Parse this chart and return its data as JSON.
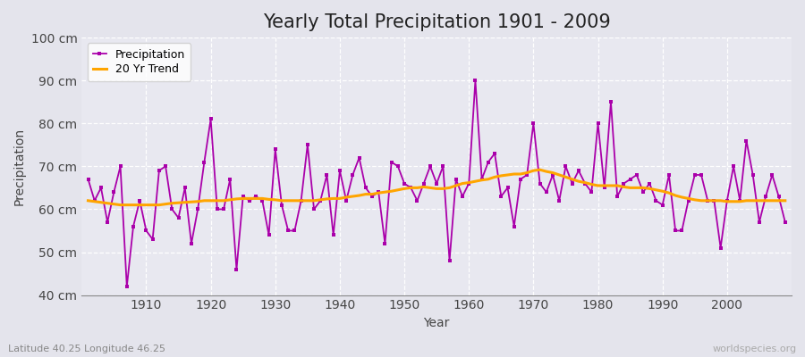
{
  "title": "Yearly Total Precipitation 1901 - 2009",
  "xlabel": "Year",
  "ylabel": "Precipitation",
  "subtitle_left": "Latitude 40.25 Longitude 46.25",
  "subtitle_right": "worldspecies.org",
  "ylim": [
    40,
    100
  ],
  "yticks": [
    40,
    50,
    60,
    70,
    80,
    90,
    100
  ],
  "ytick_labels": [
    "40 cm",
    "50 cm",
    "60 cm",
    "70 cm",
    "80 cm",
    "90 cm",
    "100 cm"
  ],
  "years": [
    1901,
    1902,
    1903,
    1904,
    1905,
    1906,
    1907,
    1908,
    1909,
    1910,
    1911,
    1912,
    1913,
    1914,
    1915,
    1916,
    1917,
    1918,
    1919,
    1920,
    1921,
    1922,
    1923,
    1924,
    1925,
    1926,
    1927,
    1928,
    1929,
    1930,
    1931,
    1932,
    1933,
    1934,
    1935,
    1936,
    1937,
    1938,
    1939,
    1940,
    1941,
    1942,
    1943,
    1944,
    1945,
    1946,
    1947,
    1948,
    1949,
    1950,
    1951,
    1952,
    1953,
    1954,
    1955,
    1956,
    1957,
    1958,
    1959,
    1960,
    1961,
    1962,
    1963,
    1964,
    1965,
    1966,
    1967,
    1968,
    1969,
    1970,
    1971,
    1972,
    1973,
    1974,
    1975,
    1976,
    1977,
    1978,
    1979,
    1980,
    1981,
    1982,
    1983,
    1984,
    1985,
    1986,
    1987,
    1988,
    1989,
    1990,
    1991,
    1992,
    1993,
    1994,
    1995,
    1996,
    1997,
    1998,
    1999,
    2000,
    2001,
    2002,
    2003,
    2004,
    2005,
    2006,
    2007,
    2008,
    2009
  ],
  "precip": [
    67,
    62,
    65,
    57,
    64,
    70,
    42,
    56,
    62,
    55,
    53,
    69,
    70,
    60,
    58,
    65,
    52,
    60,
    71,
    81,
    60,
    60,
    67,
    46,
    63,
    62,
    63,
    62,
    54,
    74,
    61,
    55,
    55,
    62,
    75,
    60,
    62,
    68,
    54,
    69,
    62,
    68,
    72,
    65,
    63,
    64,
    52,
    71,
    70,
    66,
    65,
    62,
    66,
    70,
    66,
    70,
    48,
    67,
    63,
    66,
    90,
    67,
    71,
    73,
    63,
    65,
    56,
    67,
    68,
    80,
    66,
    64,
    68,
    62,
    70,
    66,
    69,
    66,
    64,
    80,
    65,
    85,
    63,
    66,
    67,
    68,
    64,
    66,
    62,
    61,
    68,
    55,
    55,
    62,
    68,
    68,
    62,
    62,
    51,
    62,
    70,
    62,
    76,
    68,
    57,
    63,
    68,
    63,
    57
  ],
  "trend": [
    62.0,
    61.8,
    61.6,
    61.4,
    61.2,
    61.0,
    61.0,
    61.0,
    61.0,
    61.0,
    61.0,
    61.0,
    61.2,
    61.4,
    61.5,
    61.6,
    61.7,
    61.8,
    62.0,
    62.0,
    62.0,
    62.0,
    62.2,
    62.4,
    62.5,
    62.5,
    62.5,
    62.5,
    62.3,
    62.2,
    62.0,
    62.0,
    62.0,
    62.0,
    62.0,
    62.0,
    62.2,
    62.4,
    62.5,
    62.5,
    62.8,
    63.0,
    63.2,
    63.5,
    63.5,
    63.8,
    64.0,
    64.2,
    64.5,
    64.8,
    65.0,
    65.0,
    65.2,
    65.0,
    64.8,
    64.8,
    65.0,
    65.5,
    66.0,
    66.2,
    66.5,
    66.8,
    67.0,
    67.5,
    67.8,
    68.0,
    68.2,
    68.2,
    68.5,
    69.0,
    69.2,
    68.8,
    68.5,
    68.0,
    67.5,
    67.0,
    66.5,
    66.2,
    65.8,
    65.5,
    65.5,
    65.5,
    65.5,
    65.2,
    65.0,
    65.0,
    65.0,
    64.8,
    64.5,
    64.2,
    63.8,
    63.2,
    62.8,
    62.5,
    62.2,
    62.0,
    62.0,
    62.0,
    62.0,
    61.8,
    61.8,
    61.8,
    62.0,
    62.0,
    62.0,
    62.0,
    62.0,
    62.0,
    62.0
  ],
  "precip_color": "#AA00AA",
  "trend_color": "#FFA500",
  "bg_color": "#E4E4EC",
  "plot_bg_color": "#E8E8F0",
  "grid_color": "#FFFFFF",
  "title_fontsize": 15,
  "axis_fontsize": 10,
  "legend_fontsize": 9
}
